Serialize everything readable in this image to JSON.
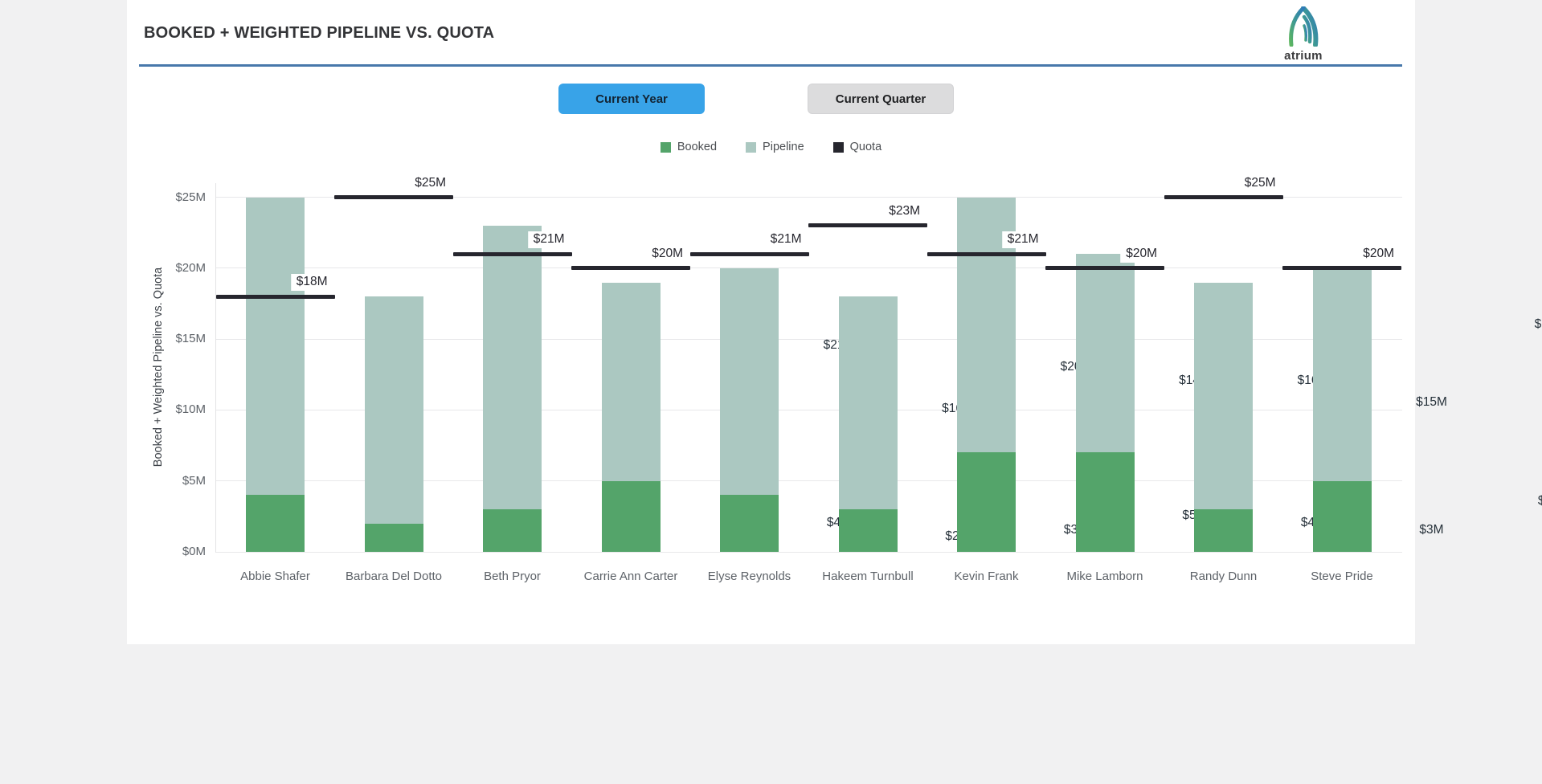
{
  "header": {
    "title": "BOOKED + WEIGHTED PIPELINE VS. QUOTA",
    "logo_text": "atrium"
  },
  "controls": {
    "current_year_label": "Current Year",
    "current_quarter_label": "Current Quarter",
    "active_button": "Current Year"
  },
  "colors": {
    "active_button_blue": "#38a3e8",
    "inactive_button_gray": "#dcdcdd",
    "header_rule_blue": "#4878ab",
    "booked_green": "#54a46a",
    "pipeline_sage": "#abc8c1",
    "quota_dark": "#26262e",
    "panel_white": "#ffffff",
    "page_background": "#f1f1f2"
  },
  "chart_data": {
    "type": "bar",
    "stacked": true,
    "title": "BOOKED + WEIGHTED PIPELINE VS. QUOTA",
    "categories": [
      "Abbie Shafer",
      "Barbara Del Dotto",
      "Beth Pryor",
      "Carrie Ann Carter",
      "Elyse Reynolds",
      "Hakeem Turnbull",
      "Kevin Frank",
      "Mike Lamborn",
      "Randy Dunn",
      "Steve Pride"
    ],
    "series": [
      {
        "name": "Booked",
        "mark": "bar",
        "color": "#54a46a",
        "values": [
          4,
          2,
          3,
          5,
          4,
          3,
          7,
          7,
          3,
          5
        ]
      },
      {
        "name": "Pipeline",
        "mark": "bar",
        "color": "#abc8c1",
        "values": [
          21,
          16,
          20,
          14,
          16,
          15,
          18,
          14,
          16,
          15
        ]
      },
      {
        "name": "Quota",
        "mark": "tick",
        "color": "#26262e",
        "values": [
          18,
          25,
          21,
          20,
          21,
          23,
          21,
          20,
          25,
          20
        ]
      }
    ],
    "value_prefix": "$",
    "value_suffix": "M",
    "xlabel": "",
    "ylabel": "Booked + Weighted Pipeline vs. Quota",
    "ylim": [
      0,
      26
    ],
    "yticks": [
      {
        "value": 0,
        "label": "$0M"
      },
      {
        "value": 5,
        "label": "$5M"
      },
      {
        "value": 10,
        "label": "$10M"
      },
      {
        "value": 15,
        "label": "$15M"
      },
      {
        "value": 20,
        "label": "$20M"
      },
      {
        "value": 25,
        "label": "$25M"
      }
    ],
    "grid": true,
    "legend_position": "top-center"
  }
}
